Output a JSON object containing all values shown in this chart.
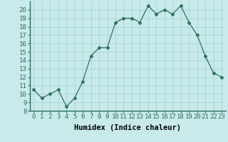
{
  "x": [
    0,
    1,
    2,
    3,
    4,
    5,
    6,
    7,
    8,
    9,
    10,
    11,
    12,
    13,
    14,
    15,
    16,
    17,
    18,
    19,
    20,
    21,
    22,
    23
  ],
  "y": [
    10.5,
    9.5,
    10,
    10.5,
    8.5,
    9.5,
    11.5,
    14.5,
    15.5,
    15.5,
    18.5,
    19,
    19,
    18.5,
    20.5,
    19.5,
    20,
    19.5,
    20.5,
    18.5,
    17,
    14.5,
    12.5,
    12
  ],
  "line_color": "#2d6e63",
  "marker": "D",
  "marker_size": 2.5,
  "background_color": "#c8eaea",
  "grid_color": "#b0d8d8",
  "xlabel": "Humidex (Indice chaleur)",
  "xlim": [
    -0.5,
    23.5
  ],
  "ylim": [
    8,
    21
  ],
  "yticks": [
    8,
    9,
    10,
    11,
    12,
    13,
    14,
    15,
    16,
    17,
    18,
    19,
    20
  ],
  "xticks": [
    0,
    1,
    2,
    3,
    4,
    5,
    6,
    7,
    8,
    9,
    10,
    11,
    12,
    13,
    14,
    15,
    16,
    17,
    18,
    19,
    20,
    21,
    22,
    23
  ],
  "xtick_labels": [
    "0",
    "1",
    "2",
    "3",
    "4",
    "5",
    "6",
    "7",
    "8",
    "9",
    "10",
    "11",
    "12",
    "13",
    "14",
    "15",
    "16",
    "17",
    "18",
    "19",
    "20",
    "21",
    "22",
    "23"
  ],
  "tick_fontsize": 6.5,
  "xlabel_fontsize": 7.5
}
